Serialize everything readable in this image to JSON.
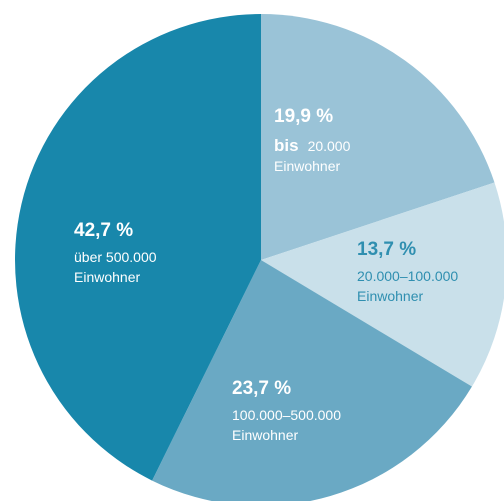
{
  "chart_data": {
    "type": "pie",
    "slices": [
      {
        "value_label": "19,9 %",
        "value": 19.9,
        "prefix": "bis",
        "range": "20.000",
        "unit": "Einwohner",
        "color": "#9ac3d7",
        "text_color": "#ffffff"
      },
      {
        "value_label": "13,7 %",
        "value": 13.7,
        "range": "20.000–100.000",
        "unit": "Einwohner",
        "color": "#c9e0ea",
        "text_color": "#2f8fb0"
      },
      {
        "value_label": "23,7 %",
        "value": 23.7,
        "range": "100.000–500.000",
        "unit": "Einwohner",
        "color": "#6aa9c4",
        "text_color": "#ffffff"
      },
      {
        "value_label": "42,7 %",
        "value": 42.7,
        "range": "über 500.000",
        "unit": "Einwohner",
        "color": "#1887ab",
        "text_color": "#ffffff"
      }
    ]
  }
}
